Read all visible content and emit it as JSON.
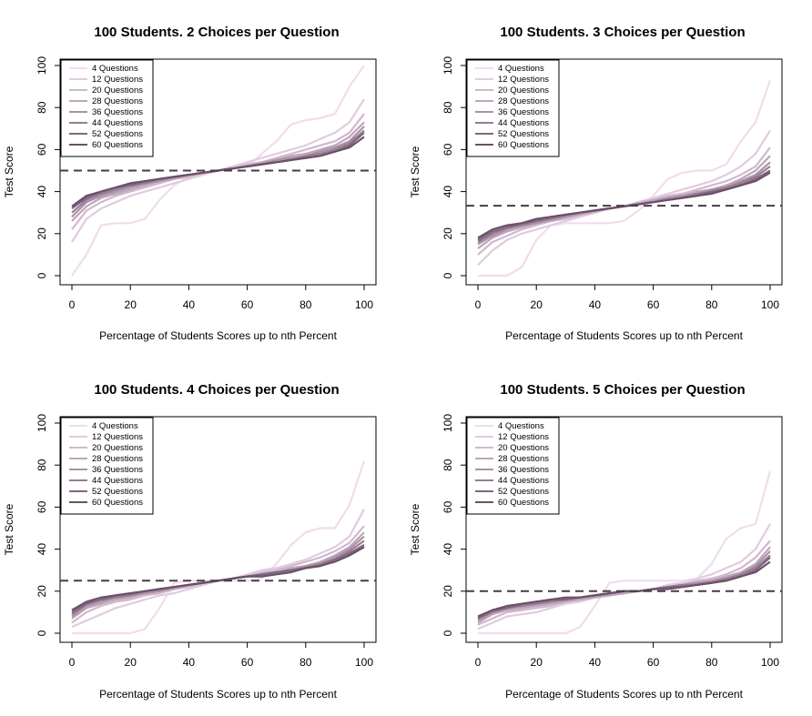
{
  "chart_data": [
    {
      "type": "line",
      "title": "100 Students. 2 Choices per Question",
      "xlabel": "Percentage of Students Scores up to nth Percent",
      "ylabel": "Test Score",
      "xlim": [
        0,
        100
      ],
      "ylim": [
        0,
        100
      ],
      "xticks": [
        "0",
        "20",
        "40",
        "60",
        "80",
        "100"
      ],
      "yticks": [
        "0",
        "20",
        "40",
        "60",
        "80",
        "100"
      ],
      "legend_position": "top-left",
      "reference_line": 50,
      "x": [
        0,
        5,
        10,
        15,
        20,
        25,
        30,
        35,
        40,
        45,
        50,
        55,
        60,
        65,
        70,
        75,
        80,
        85,
        90,
        95,
        100
      ],
      "series": [
        {
          "name": "4 Questions",
          "values": [
            0,
            10,
            24,
            25,
            25,
            27,
            36,
            43,
            47,
            49,
            50,
            51,
            52,
            58,
            64,
            72,
            74,
            75,
            77,
            90,
            100
          ]
        },
        {
          "name": "12 Questions",
          "values": [
            16,
            27,
            32,
            35,
            38,
            40,
            42,
            44,
            46,
            48,
            50,
            52,
            54,
            56,
            58,
            60,
            62,
            65,
            68,
            73,
            84
          ]
        },
        {
          "name": "20 Questions",
          "values": [
            22,
            31,
            35,
            38,
            40,
            42,
            44,
            46,
            47,
            49,
            50,
            51,
            53,
            54,
            56,
            58,
            60,
            62,
            64,
            68,
            77
          ]
        },
        {
          "name": "28 Questions",
          "values": [
            26,
            33,
            37,
            39,
            41,
            43,
            45,
            46,
            48,
            49,
            50,
            51,
            52,
            54,
            55,
            57,
            58,
            60,
            62,
            66,
            73
          ]
        },
        {
          "name": "36 Questions",
          "values": [
            28,
            35,
            38,
            40,
            42,
            44,
            45,
            47,
            48,
            49,
            50,
            51,
            52,
            53,
            55,
            56,
            57,
            59,
            61,
            64,
            71
          ]
        },
        {
          "name": "44 Questions",
          "values": [
            30,
            36,
            39,
            41,
            43,
            44,
            46,
            47,
            48,
            49,
            50,
            51,
            52,
            53,
            54,
            55,
            57,
            58,
            60,
            63,
            69
          ]
        },
        {
          "name": "52 Questions",
          "values": [
            32,
            37,
            40,
            42,
            43,
            45,
            46,
            47,
            48,
            49,
            50,
            51,
            52,
            53,
            54,
            55,
            56,
            57,
            59,
            62,
            68
          ]
        },
        {
          "name": "60 Questions",
          "values": [
            33,
            38,
            40,
            42,
            44,
            45,
            46,
            47,
            48,
            49,
            50,
            51,
            52,
            53,
            54,
            55,
            56,
            57,
            59,
            61,
            66
          ]
        }
      ]
    },
    {
      "type": "line",
      "title": "100 Students. 3 Choices per Question",
      "xlabel": "Percentage of Students Scores up to nth Percent",
      "ylabel": "Test Score",
      "xlim": [
        0,
        100
      ],
      "ylim": [
        0,
        100
      ],
      "xticks": [
        "0",
        "20",
        "40",
        "60",
        "80",
        "100"
      ],
      "yticks": [
        "0",
        "20",
        "40",
        "60",
        "80",
        "100"
      ],
      "legend_position": "top-left",
      "reference_line": 33.3,
      "x": [
        0,
        5,
        10,
        15,
        20,
        25,
        30,
        35,
        40,
        45,
        50,
        55,
        60,
        65,
        70,
        75,
        80,
        85,
        90,
        95,
        100
      ],
      "series": [
        {
          "name": "4 Questions",
          "values": [
            0,
            0,
            0,
            4,
            17,
            24,
            25,
            25,
            25,
            25,
            26,
            31,
            38,
            46,
            49,
            50,
            50,
            53,
            64,
            73,
            93
          ]
        },
        {
          "name": "12 Questions",
          "values": [
            5,
            12,
            17,
            20,
            22,
            24,
            26,
            28,
            30,
            32,
            33,
            35,
            37,
            39,
            41,
            43,
            45,
            48,
            52,
            58,
            69
          ]
        },
        {
          "name": "20 Questions",
          "values": [
            10,
            16,
            19,
            22,
            24,
            26,
            27,
            29,
            30,
            32,
            33,
            35,
            36,
            38,
            39,
            41,
            43,
            45,
            48,
            52,
            61
          ]
        },
        {
          "name": "28 Questions",
          "values": [
            13,
            18,
            21,
            23,
            25,
            26,
            28,
            29,
            31,
            32,
            33,
            34,
            36,
            37,
            38,
            40,
            41,
            43,
            46,
            50,
            57
          ]
        },
        {
          "name": "36 Questions",
          "values": [
            15,
            19,
            22,
            24,
            25,
            27,
            28,
            30,
            31,
            32,
            33,
            34,
            35,
            37,
            38,
            39,
            41,
            42,
            45,
            48,
            54
          ]
        },
        {
          "name": "44 Questions",
          "values": [
            16,
            20,
            23,
            24,
            26,
            27,
            29,
            30,
            31,
            32,
            33,
            34,
            35,
            36,
            37,
            39,
            40,
            42,
            44,
            47,
            52
          ]
        },
        {
          "name": "52 Questions",
          "values": [
            17,
            21,
            23,
            25,
            26,
            28,
            29,
            30,
            31,
            32,
            33,
            34,
            35,
            36,
            37,
            38,
            40,
            41,
            43,
            46,
            50
          ]
        },
        {
          "name": "60 Questions",
          "values": [
            18,
            22,
            24,
            25,
            27,
            28,
            29,
            30,
            31,
            32,
            33,
            34,
            35,
            36,
            37,
            38,
            39,
            41,
            43,
            45,
            49
          ]
        }
      ]
    },
    {
      "type": "line",
      "title": "100 Students. 4 Choices per Question",
      "xlabel": "Percentage of Students Scores up to nth Percent",
      "ylabel": "Test Score",
      "xlim": [
        0,
        100
      ],
      "ylim": [
        0,
        100
      ],
      "xticks": [
        "0",
        "20",
        "40",
        "60",
        "80",
        "100"
      ],
      "yticks": [
        "0",
        "20",
        "40",
        "60",
        "80",
        "100"
      ],
      "legend_position": "top-left",
      "reference_line": 25,
      "x": [
        0,
        5,
        10,
        15,
        20,
        25,
        30,
        35,
        40,
        45,
        50,
        55,
        60,
        65,
        70,
        75,
        80,
        85,
        90,
        95,
        100
      ],
      "series": [
        {
          "name": "4 Questions",
          "values": [
            0,
            0,
            0,
            0,
            0,
            2,
            12,
            24,
            25,
            25,
            25,
            25,
            25,
            26,
            33,
            42,
            48,
            50,
            50,
            61,
            82
          ]
        },
        {
          "name": "12 Questions",
          "values": [
            3,
            6,
            9,
            12,
            14,
            16,
            18,
            19,
            21,
            23,
            25,
            26,
            28,
            30,
            31,
            33,
            35,
            38,
            41,
            46,
            59
          ]
        },
        {
          "name": "20 Questions",
          "values": [
            5,
            10,
            13,
            15,
            16,
            18,
            19,
            21,
            22,
            24,
            25,
            26,
            27,
            29,
            30,
            32,
            34,
            36,
            39,
            43,
            51
          ]
        },
        {
          "name": "28 Questions",
          "values": [
            7,
            12,
            14,
            16,
            17,
            19,
            20,
            21,
            23,
            24,
            25,
            26,
            27,
            28,
            29,
            31,
            32,
            34,
            37,
            41,
            48
          ]
        },
        {
          "name": "36 Questions",
          "values": [
            8,
            13,
            15,
            17,
            18,
            19,
            20,
            22,
            23,
            24,
            25,
            26,
            27,
            28,
            29,
            30,
            32,
            33,
            36,
            40,
            46
          ]
        },
        {
          "name": "44 Questions",
          "values": [
            9,
            14,
            16,
            17,
            18,
            20,
            21,
            22,
            23,
            24,
            25,
            26,
            27,
            28,
            29,
            30,
            31,
            33,
            35,
            39,
            44
          ]
        },
        {
          "name": "52 Questions",
          "values": [
            10,
            14,
            16,
            18,
            19,
            20,
            21,
            22,
            23,
            24,
            25,
            26,
            27,
            28,
            29,
            30,
            31,
            32,
            35,
            38,
            42
          ]
        },
        {
          "name": "60 Questions",
          "values": [
            11,
            15,
            17,
            18,
            19,
            20,
            21,
            22,
            23,
            24,
            25,
            26,
            27,
            27,
            28,
            29,
            31,
            32,
            34,
            37,
            41
          ]
        }
      ]
    },
    {
      "type": "line",
      "title": "100 Students. 5 Choices per Question",
      "xlabel": "Percentage of Students Scores up to nth Percent",
      "ylabel": "Test Score",
      "xlim": [
        0,
        100
      ],
      "ylim": [
        0,
        100
      ],
      "xticks": [
        "0",
        "20",
        "40",
        "60",
        "80",
        "100"
      ],
      "yticks": [
        "0",
        "20",
        "40",
        "60",
        "80",
        "100"
      ],
      "legend_position": "top-left",
      "reference_line": 20,
      "x": [
        0,
        5,
        10,
        15,
        20,
        25,
        30,
        35,
        40,
        45,
        50,
        55,
        60,
        65,
        70,
        75,
        80,
        85,
        90,
        95,
        100
      ],
      "series": [
        {
          "name": "4 Questions",
          "values": [
            0,
            0,
            0,
            0,
            0,
            0,
            0,
            3,
            13,
            24,
            25,
            25,
            25,
            25,
            25,
            26,
            33,
            45,
            50,
            52,
            77
          ]
        },
        {
          "name": "12 Questions",
          "values": [
            2,
            5,
            8,
            9,
            10,
            12,
            14,
            15,
            17,
            18,
            19,
            20,
            21,
            23,
            24,
            26,
            28,
            31,
            34,
            40,
            52
          ]
        },
        {
          "name": "20 Questions",
          "values": [
            4,
            7,
            10,
            11,
            12,
            13,
            15,
            16,
            17,
            18,
            19,
            20,
            21,
            22,
            23,
            25,
            26,
            28,
            31,
            36,
            44
          ]
        },
        {
          "name": "28 Questions",
          "values": [
            5,
            9,
            11,
            12,
            13,
            14,
            15,
            16,
            17,
            18,
            19,
            20,
            21,
            22,
            23,
            24,
            25,
            27,
            29,
            33,
            41
          ]
        },
        {
          "name": "36 Questions",
          "values": [
            6,
            10,
            12,
            13,
            14,
            15,
            16,
            17,
            18,
            19,
            20,
            20,
            21,
            22,
            23,
            24,
            25,
            26,
            28,
            32,
            39
          ]
        },
        {
          "name": "44 Questions",
          "values": [
            7,
            10,
            12,
            13,
            14,
            15,
            16,
            17,
            18,
            19,
            20,
            20,
            21,
            22,
            23,
            23,
            24,
            26,
            28,
            31,
            37
          ]
        },
        {
          "name": "52 Questions",
          "values": [
            7,
            11,
            12,
            14,
            15,
            16,
            16,
            17,
            18,
            19,
            20,
            20,
            21,
            22,
            22,
            23,
            24,
            25,
            27,
            30,
            36
          ]
        },
        {
          "name": "60 Questions",
          "values": [
            8,
            11,
            13,
            14,
            15,
            16,
            17,
            17,
            18,
            19,
            20,
            20,
            21,
            21,
            22,
            23,
            24,
            25,
            27,
            29,
            34
          ]
        }
      ]
    }
  ],
  "colors": {
    "series": [
      "#f0dcec",
      "#e2cadf",
      "#d0b8cd",
      "#bea5bb",
      "#ab91a8",
      "#967c93",
      "#80667e",
      "#6a5168"
    ],
    "reference_line": "#4a3a48",
    "axis": "#000000"
  }
}
